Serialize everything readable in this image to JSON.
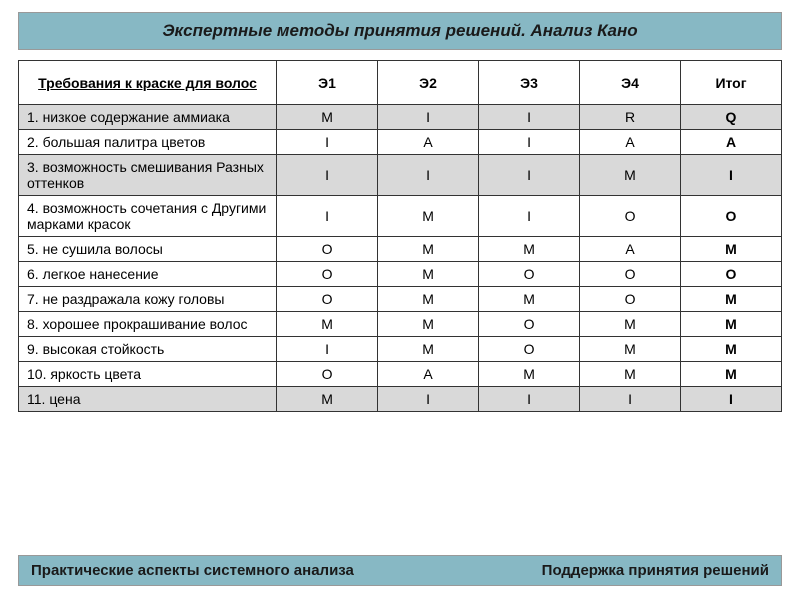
{
  "title": "Экспертные методы принятия решений. Анализ Кано",
  "columns": [
    "Требования к краске для волос",
    "Э1",
    "Э2",
    "Э3",
    "Э4",
    "Итог"
  ],
  "rows": [
    {
      "shaded": true,
      "label": "1. низкое содержание аммиака",
      "vals": [
        "M",
        "I",
        "I",
        "R"
      ],
      "itog": "Q"
    },
    {
      "shaded": false,
      "label": "2. большая палитра цветов",
      "vals": [
        "I",
        "A",
        "I",
        "A"
      ],
      "itog": "A"
    },
    {
      "shaded": true,
      "label": "3. возможность смешивания Разных оттенков",
      "vals": [
        "I",
        "I",
        "I",
        "M"
      ],
      "itog": "I"
    },
    {
      "shaded": false,
      "label": "4. возможность сочетания с Другими марками красок",
      "vals": [
        "I",
        "M",
        "I",
        "O"
      ],
      "itog": "O"
    },
    {
      "shaded": false,
      "label": "5. не сушила волосы",
      "vals": [
        "O",
        "M",
        "M",
        "A"
      ],
      "itog": "M"
    },
    {
      "shaded": false,
      "label": "6. легкое нанесение",
      "vals": [
        "O",
        "M",
        "O",
        "O"
      ],
      "itog": "O"
    },
    {
      "shaded": false,
      "label": "7. не раздражала кожу головы",
      "vals": [
        "O",
        "M",
        "M",
        "O"
      ],
      "itog": "M"
    },
    {
      "shaded": false,
      "label": "8. хорошее прокрашивание волос",
      "vals": [
        "M",
        "M",
        "O",
        "M"
      ],
      "itog": "M"
    },
    {
      "shaded": false,
      "label": "9. высокая стойкость",
      "vals": [
        "I",
        "M",
        "O",
        "M"
      ],
      "itog": "M"
    },
    {
      "shaded": false,
      "label": "10. яркость цвета",
      "vals": [
        "O",
        "A",
        "M",
        "M"
      ],
      "itog": "M"
    },
    {
      "shaded": true,
      "label": "11. цена",
      "vals": [
        "M",
        "I",
        "I",
        "I"
      ],
      "itog": "I"
    }
  ],
  "footer_left": "Практические аспекты системного анализа",
  "footer_right": "Поддержка принятия решений",
  "colors": {
    "header_bg": "#87b8c4",
    "shaded_row": "#d9d9d9",
    "border": "#333333",
    "page_bg": "#ffffff"
  }
}
